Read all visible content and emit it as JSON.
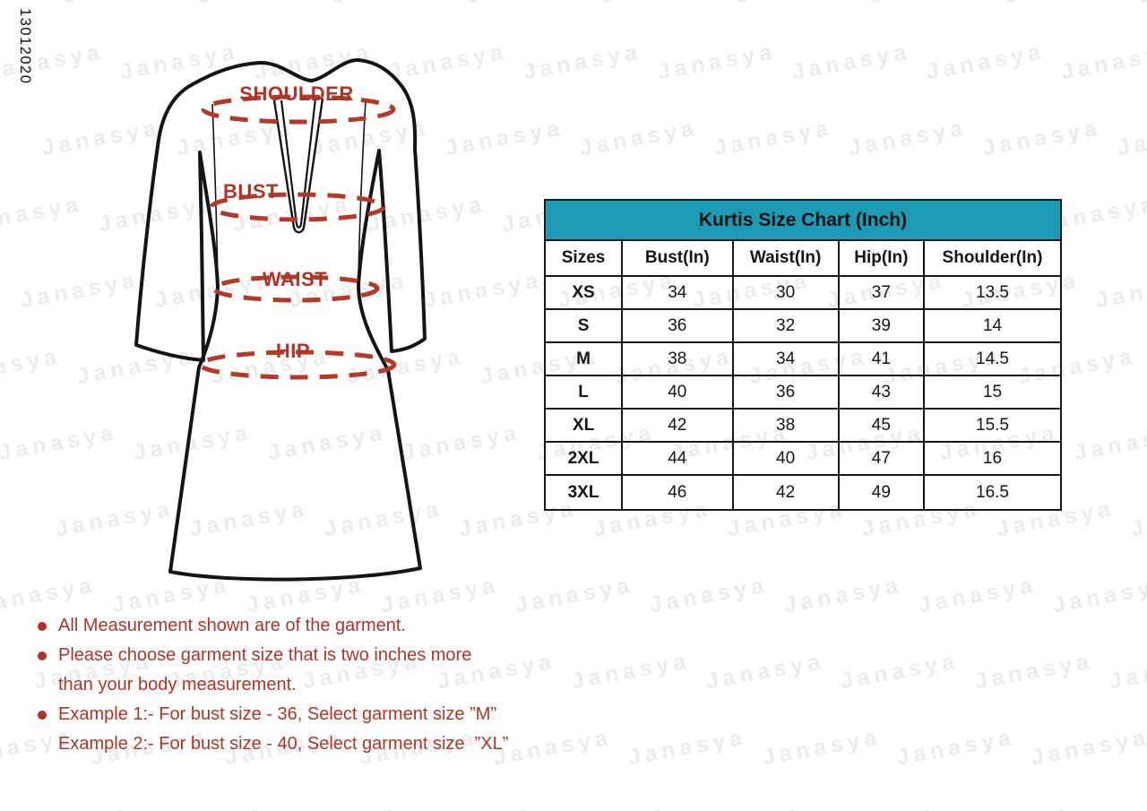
{
  "code": "13012020",
  "watermark": {
    "text": "Janasya",
    "color": "#ececec"
  },
  "colors": {
    "table_header_teal": "#1b9bb4",
    "note_red": "#ad3528",
    "dash_red": "#b13a2a",
    "garment_outline": "#141414"
  },
  "garment": {
    "labels": {
      "shoulder": "SHOULDER",
      "bust": "BUST",
      "waist": "WAIST",
      "hip": "HIP"
    }
  },
  "table": {
    "title": "Kurtis Size Chart (Inch)",
    "headers": [
      "Sizes",
      "Bust(In)",
      "Waist(In)",
      "Hip(In)",
      "Shoulder(In)"
    ],
    "rows": [
      {
        "size": "XS",
        "bust": "34",
        "waist": "30",
        "hip": "37",
        "shoulder": "13.5"
      },
      {
        "size": "S",
        "bust": "36",
        "waist": "32",
        "hip": "39",
        "shoulder": "14"
      },
      {
        "size": "M",
        "bust": "38",
        "waist": "34",
        "hip": "41",
        "shoulder": "14.5"
      },
      {
        "size": "L",
        "bust": "40",
        "waist": "36",
        "hip": "43",
        "shoulder": "15"
      },
      {
        "size": "XL",
        "bust": "42",
        "waist": "38",
        "hip": "45",
        "shoulder": "15.5"
      },
      {
        "size": "2XL",
        "bust": "44",
        "waist": "40",
        "hip": "47",
        "shoulder": "16"
      },
      {
        "size": "3XL",
        "bust": "46",
        "waist": "42",
        "hip": "49",
        "shoulder": "16.5"
      }
    ]
  },
  "notes": {
    "items": [
      {
        "lines": [
          "All Measurement shown are of the garment."
        ]
      },
      {
        "lines": [
          "Please choose garment size that is two inches more",
          "than your body measurement."
        ]
      },
      {
        "lines": [
          "Example 1:- For bust size - 36, Select garment size ”M”",
          "Example 2:- For bust size - 40, Select garment size  ”XL”"
        ]
      }
    ]
  },
  "chart_data": {
    "type": "table",
    "title": "Kurtis Size Chart (Inch)",
    "columns": [
      "Sizes",
      "Bust(In)",
      "Waist(In)",
      "Hip(In)",
      "Shoulder(In)"
    ],
    "rows": [
      [
        "XS",
        34,
        30,
        37,
        13.5
      ],
      [
        "S",
        36,
        32,
        39,
        14
      ],
      [
        "M",
        38,
        34,
        41,
        14.5
      ],
      [
        "L",
        40,
        36,
        43,
        15
      ],
      [
        "XL",
        42,
        38,
        45,
        15.5
      ],
      [
        "2XL",
        44,
        40,
        47,
        16
      ],
      [
        "3XL",
        46,
        42,
        49,
        16.5
      ]
    ],
    "units": "inches",
    "annotations": [
      "All Measurement shown are of the garment.",
      "Please choose garment size that is two inches more than your body measurement.",
      "Example 1:- For bust size - 36, Select garment size ”M”",
      "Example 2:- For bust size - 40, Select garment size ”XL”"
    ]
  }
}
